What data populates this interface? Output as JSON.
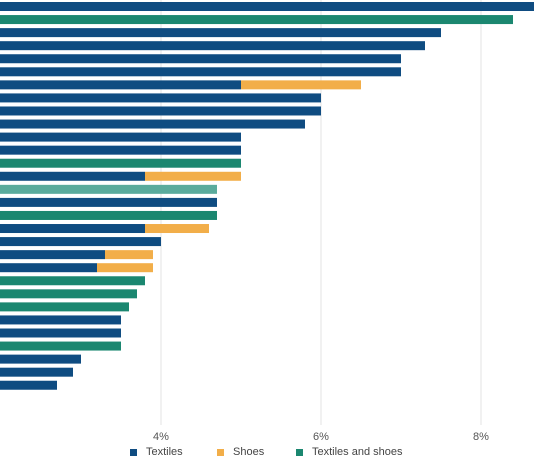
{
  "chart_data": {
    "type": "bar",
    "orientation": "horizontal",
    "stacked": true,
    "x_unit": "%",
    "x_ticks": [
      {
        "value": 4,
        "label": "4%"
      },
      {
        "value": 6,
        "label": "6%"
      },
      {
        "value": 8,
        "label": "8%"
      }
    ],
    "grid": true,
    "legend_position": "bottom",
    "series": [
      {
        "name": "Textiles",
        "color": "#0f4c81"
      },
      {
        "name": "Shoes",
        "color": "#f2ae49"
      },
      {
        "name": "Textiles and shoes",
        "color": "#1b8770"
      }
    ],
    "bars": [
      {
        "segments": [
          {
            "series": "Textiles",
            "value": 8.8
          }
        ]
      },
      {
        "segments": [
          {
            "series": "Textiles and shoes",
            "value": 8.4
          }
        ]
      },
      {
        "segments": [
          {
            "series": "Textiles",
            "value": 7.5
          }
        ]
      },
      {
        "segments": [
          {
            "series": "Textiles",
            "value": 7.3
          }
        ]
      },
      {
        "segments": [
          {
            "series": "Textiles",
            "value": 7.0
          }
        ]
      },
      {
        "segments": [
          {
            "series": "Textiles",
            "value": 7.0
          }
        ]
      },
      {
        "segments": [
          {
            "series": "Textiles",
            "value": 5.0
          },
          {
            "series": "Shoes",
            "value": 1.5
          }
        ]
      },
      {
        "segments": [
          {
            "series": "Textiles",
            "value": 6.0
          }
        ]
      },
      {
        "segments": [
          {
            "series": "Textiles",
            "value": 6.0
          }
        ]
      },
      {
        "segments": [
          {
            "series": "Textiles",
            "value": 5.8
          }
        ]
      },
      {
        "segments": [
          {
            "series": "Textiles",
            "value": 5.0
          }
        ]
      },
      {
        "segments": [
          {
            "series": "Textiles",
            "value": 5.0
          }
        ]
      },
      {
        "segments": [
          {
            "series": "Textiles and shoes",
            "value": 5.0
          }
        ]
      },
      {
        "segments": [
          {
            "series": "Textiles",
            "value": 3.8
          },
          {
            "series": "Shoes",
            "value": 1.2
          }
        ]
      },
      {
        "segments": [
          {
            "series": "Textiles and shoes",
            "value": 4.7
          }
        ],
        "highlighted": true
      },
      {
        "segments": [
          {
            "series": "Textiles",
            "value": 4.7
          }
        ]
      },
      {
        "segments": [
          {
            "series": "Textiles and shoes",
            "value": 4.7
          }
        ]
      },
      {
        "segments": [
          {
            "series": "Textiles",
            "value": 3.8
          },
          {
            "series": "Shoes",
            "value": 0.8
          }
        ]
      },
      {
        "segments": [
          {
            "series": "Textiles",
            "value": 4.0
          }
        ]
      },
      {
        "segments": [
          {
            "series": "Textiles",
            "value": 3.3
          },
          {
            "series": "Shoes",
            "value": 0.6
          }
        ]
      },
      {
        "segments": [
          {
            "series": "Textiles",
            "value": 3.2
          },
          {
            "series": "Shoes",
            "value": 0.7
          }
        ]
      },
      {
        "segments": [
          {
            "series": "Textiles and shoes",
            "value": 3.8
          }
        ]
      },
      {
        "segments": [
          {
            "series": "Textiles and shoes",
            "value": 3.7
          }
        ]
      },
      {
        "segments": [
          {
            "series": "Textiles and shoes",
            "value": 3.6
          }
        ]
      },
      {
        "segments": [
          {
            "series": "Textiles",
            "value": 3.5
          }
        ]
      },
      {
        "segments": [
          {
            "series": "Textiles",
            "value": 3.5
          }
        ]
      },
      {
        "segments": [
          {
            "series": "Textiles and shoes",
            "value": 3.5
          }
        ]
      },
      {
        "segments": [
          {
            "series": "Textiles",
            "value": 3.0
          }
        ]
      },
      {
        "segments": [
          {
            "series": "Textiles",
            "value": 2.9
          }
        ]
      },
      {
        "segments": [
          {
            "series": "Textiles",
            "value": 2.7
          }
        ]
      }
    ]
  }
}
